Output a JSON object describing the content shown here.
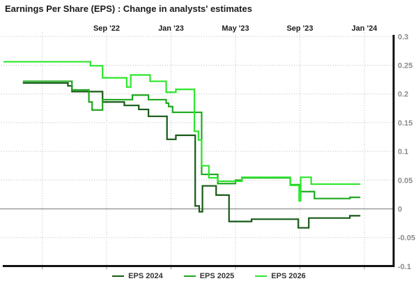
{
  "header": {
    "title": "Earnings Per Share (EPS) : Change in analysts' estimates"
  },
  "colors": {
    "background": "#ffffff",
    "grid": "#b9b9b9",
    "zero_line": "#9a9a9a",
    "axis": "#111111",
    "y_tick_label": "#8c8c8c",
    "x_tick_label": "#1a1a1a",
    "eps_2024": "#155915",
    "eps_2025": "#1ea81e",
    "eps_2026": "#2ce62c"
  },
  "chart_data": {
    "type": "line",
    "step": true,
    "title": "Earnings Per Share (EPS) : Change in analysts' estimates",
    "xlabel": "",
    "ylabel": "",
    "x_unit": "months, 0 = Jan 2022",
    "xlim": [
      1.6,
      25.8
    ],
    "ylim": [
      -0.102,
      0.305
    ],
    "grid": "dotted",
    "legend_position": "bottom",
    "x_axis_position": "top-labels",
    "y_axis_position": "right",
    "x_gridlines": [
      4,
      8,
      12,
      16,
      20,
      24
    ],
    "x_ticks": [
      {
        "m": 8,
        "label": "Sep '22"
      },
      {
        "m": 12,
        "label": "Jan '23"
      },
      {
        "m": 16,
        "label": "May '23"
      },
      {
        "m": 20,
        "label": "Sep '23"
      },
      {
        "m": 24,
        "label": "Jan '24"
      }
    ],
    "y_ticks": [
      {
        "v": 0.3,
        "label": "0.3"
      },
      {
        "v": 0.25,
        "label": "0.25"
      },
      {
        "v": 0.2,
        "label": "0.2"
      },
      {
        "v": 0.15,
        "label": "0.15"
      },
      {
        "v": 0.1,
        "label": "0.1"
      },
      {
        "v": 0.05,
        "label": "0.05"
      },
      {
        "v": 0,
        "label": "0"
      },
      {
        "v": -0.05,
        "label": "-0.05"
      },
      {
        "v": -0.1,
        "label": "-0.1"
      }
    ],
    "series": [
      {
        "name": "EPS 2024",
        "color": "#155915",
        "end": 23.75,
        "points": [
          [
            2.8,
            0.219
          ],
          [
            5.6,
            0.214
          ],
          [
            5.85,
            0.204
          ],
          [
            7.75,
            0.186
          ],
          [
            9.1,
            0.18
          ],
          [
            10.0,
            0.173
          ],
          [
            10.6,
            0.161
          ],
          [
            11.75,
            0.121
          ],
          [
            12.3,
            0.128
          ],
          [
            13.5,
            0.005
          ],
          [
            13.75,
            -0.005
          ],
          [
            13.95,
            0.04
          ],
          [
            14.8,
            0.024
          ],
          [
            15.6,
            -0.022
          ],
          [
            17.0,
            -0.018
          ],
          [
            19.9,
            -0.033
          ],
          [
            20.55,
            -0.016
          ],
          [
            23.1,
            -0.012
          ]
        ]
      },
      {
        "name": "EPS 2025",
        "color": "#1ea81e",
        "end": 23.75,
        "points": [
          [
            2.8,
            0.222
          ],
          [
            5.85,
            0.207
          ],
          [
            6.9,
            0.186
          ],
          [
            7.1,
            0.172
          ],
          [
            7.75,
            0.19
          ],
          [
            9.6,
            0.198
          ],
          [
            10.6,
            0.19
          ],
          [
            11.7,
            0.184
          ],
          [
            11.85,
            0.178
          ],
          [
            12.1,
            0.168
          ],
          [
            13.9,
            0.06
          ],
          [
            14.9,
            0.044
          ],
          [
            16.0,
            0.05
          ],
          [
            16.4,
            0.054
          ],
          [
            19.4,
            0.042
          ],
          [
            20.0,
            0.03
          ],
          [
            20.9,
            0.018
          ],
          [
            23.1,
            0.02
          ]
        ]
      },
      {
        "name": "EPS 2026",
        "color": "#2ce62c",
        "end": 23.75,
        "points": [
          [
            1.6,
            0.256
          ],
          [
            7.0,
            0.249
          ],
          [
            7.75,
            0.228
          ],
          [
            9.25,
            0.212
          ],
          [
            9.5,
            0.233
          ],
          [
            10.7,
            0.222
          ],
          [
            11.7,
            0.203
          ],
          [
            12.3,
            0.208
          ],
          [
            13.45,
            0.135
          ],
          [
            13.7,
            0.12
          ],
          [
            13.9,
            0.075
          ],
          [
            14.35,
            0.054
          ],
          [
            14.9,
            0.048
          ],
          [
            16.4,
            0.055
          ],
          [
            19.4,
            0.041
          ],
          [
            19.95,
            0.014
          ],
          [
            20.05,
            0.055
          ],
          [
            20.7,
            0.043
          ]
        ]
      }
    ]
  }
}
